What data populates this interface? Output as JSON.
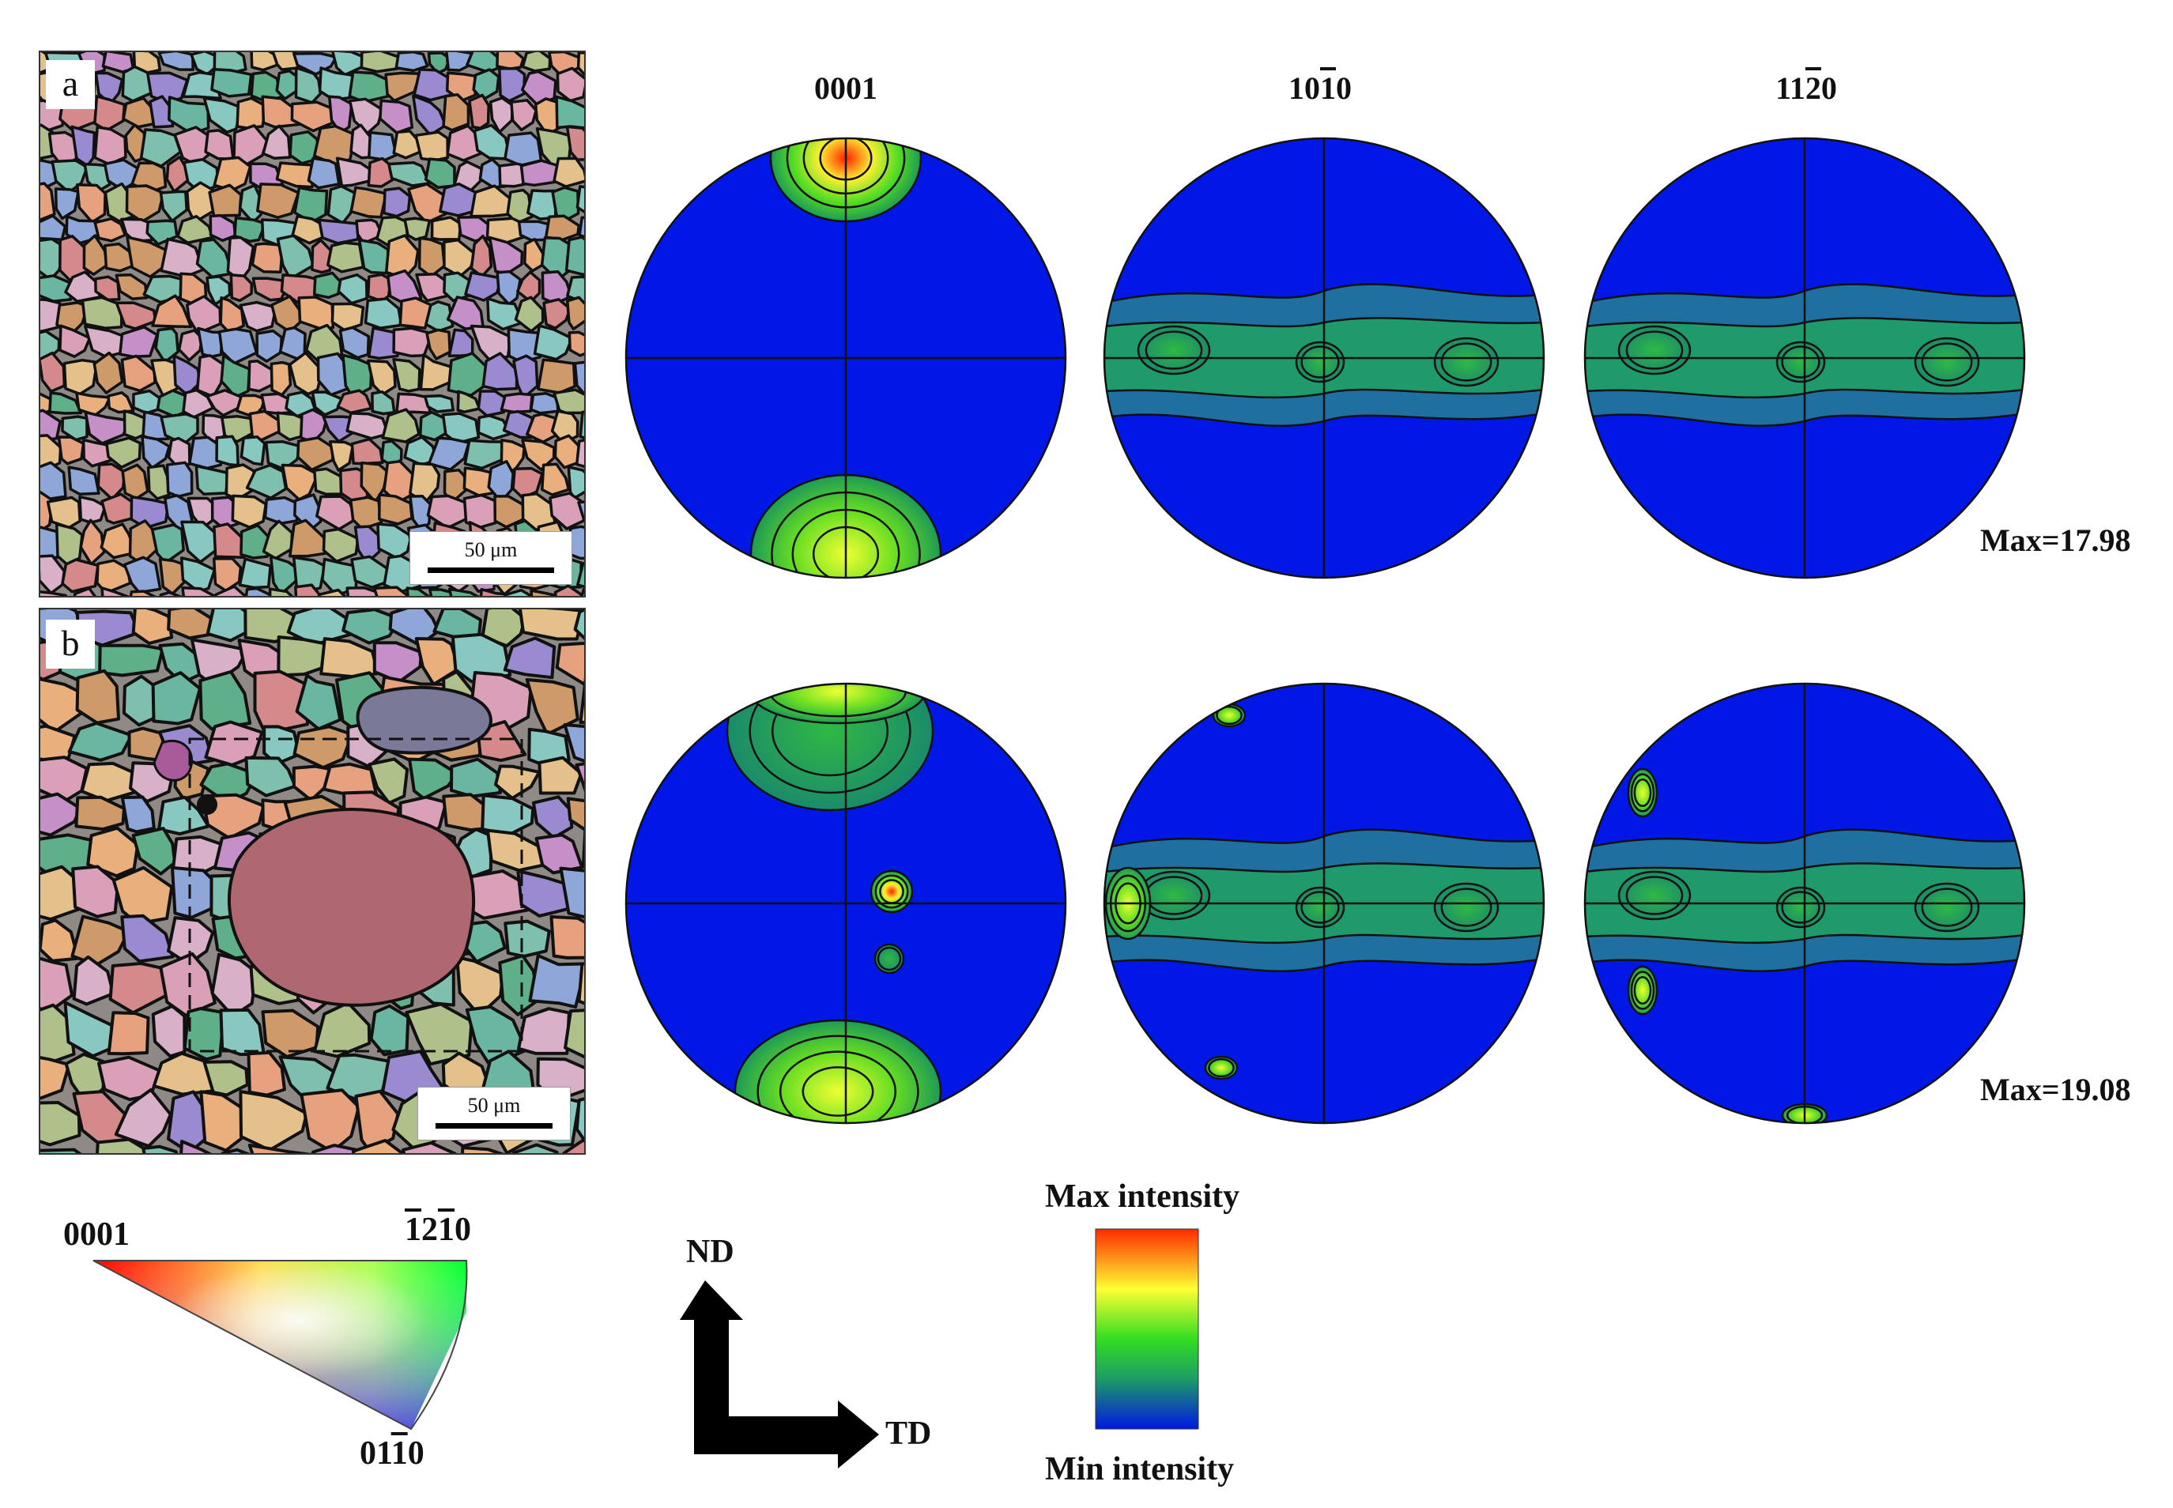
{
  "pole_figures": {
    "headers": [
      {
        "main": "0001",
        "bar": ""
      },
      {
        "main": "10",
        "bar": "1",
        "tail": "0"
      },
      {
        "main": "11",
        "bar": "2",
        "tail": "0"
      }
    ],
    "row_a_max": "Max=17.98",
    "row_b_max": "Max=19.08"
  },
  "panels": {
    "a": {
      "letter": "a",
      "scale": "50 μm"
    },
    "b": {
      "letter": "b",
      "scale": "50 μm"
    }
  },
  "ipf_key": {
    "corner_0001": "0001",
    "corner_top_right": {
      "pre": "",
      "bar1": "1",
      "mid": "2",
      "bar2": "1",
      "tail": "0",
      "lead_bar": "1"
    },
    "corner_bottom": {
      "pre": "01",
      "bar": "1",
      "tail": "0"
    }
  },
  "axes": {
    "vertical": "ND",
    "horizontal": "TD"
  },
  "colorbar": {
    "max_label": "Max intensity",
    "min_label": "Min intensity",
    "colors": [
      "#ff2a00",
      "#ffff33",
      "#33cc33",
      "#1f9c66",
      "#0018e0"
    ]
  }
}
